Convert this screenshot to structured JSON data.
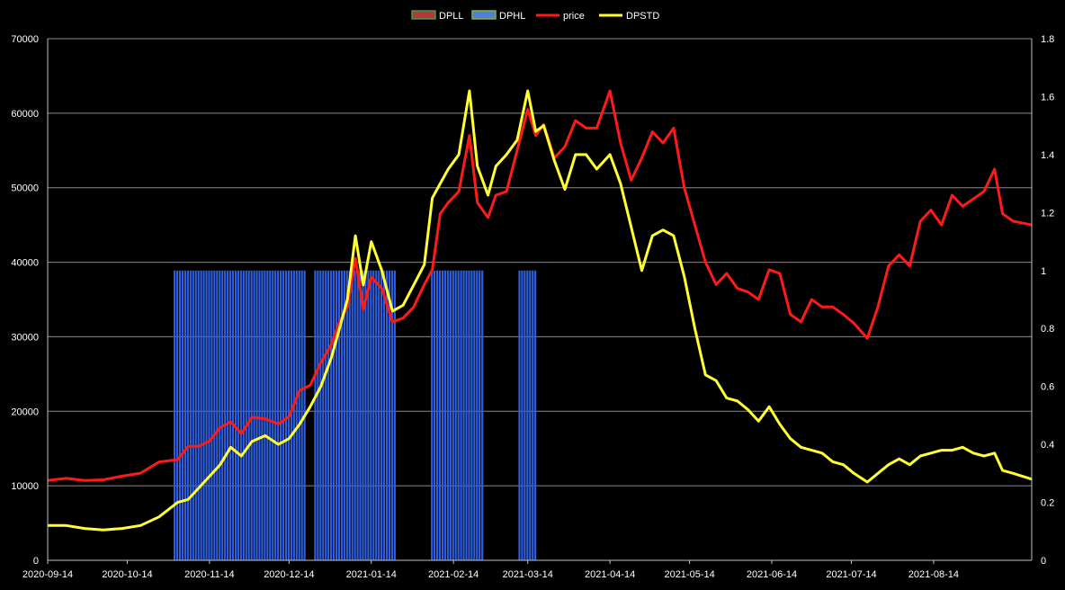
{
  "chart_data": {
    "type": "line",
    "legend": {
      "placement": "top-center",
      "entries": [
        {
          "name": "DPLL",
          "kind": "bar",
          "color": "#b23a3a",
          "border": "#3f9a3f"
        },
        {
          "name": "DPHL",
          "kind": "bar",
          "color": "#4f7fd9",
          "border": "#7fb23f"
        },
        {
          "name": "price",
          "kind": "line",
          "color": "#ff1a1a"
        },
        {
          "name": "DPSTD",
          "kind": "line",
          "color": "#ffff33"
        }
      ]
    },
    "grid": true,
    "x_axis": {
      "type": "date",
      "start": "2020-09-14",
      "end": "2021-09-20",
      "tick_labels": [
        "2020-09-14",
        "2020-10-14",
        "2020-11-14",
        "2020-12-14",
        "2021-01-14",
        "2021-02-14",
        "2021-03-14",
        "2021-04-14",
        "2021-05-14",
        "2021-06-14",
        "2021-07-14",
        "2021-08-14"
      ]
    },
    "y_left": {
      "range": [
        0,
        70000
      ],
      "tick_labels": [
        "0",
        "10000",
        "20000",
        "30000",
        "40000",
        "50000",
        "60000",
        "70000"
      ]
    },
    "y_right": {
      "range": [
        0,
        1.8
      ],
      "tick_labels": [
        "0",
        "0.2",
        "0.4",
        "0.6",
        "0.8",
        "1",
        "1.2",
        "1.4",
        "1.6",
        "1.8"
      ]
    },
    "bars": {
      "name": "DPHL",
      "axis": "right",
      "value": 1,
      "color": "#2f5fe0",
      "ranges": [
        [
          "2020-11-01",
          "2020-12-20"
        ],
        [
          "2020-12-24",
          "2021-01-23"
        ],
        [
          "2021-02-06",
          "2021-02-25"
        ],
        [
          "2021-03-11",
          "2021-03-17"
        ]
      ]
    },
    "series": [
      {
        "name": "price",
        "axis": "left",
        "color": "#ff1a1a",
        "points": [
          [
            "2020-09-14",
            10700
          ],
          [
            "2020-09-21",
            11000
          ],
          [
            "2020-09-28",
            10700
          ],
          [
            "2020-10-05",
            10800
          ],
          [
            "2020-10-12",
            11300
          ],
          [
            "2020-10-19",
            11700
          ],
          [
            "2020-10-26",
            13200
          ],
          [
            "2020-11-02",
            13500
          ],
          [
            "2020-11-06",
            15300
          ],
          [
            "2020-11-10",
            15300
          ],
          [
            "2020-11-14",
            16000
          ],
          [
            "2020-11-18",
            17800
          ],
          [
            "2020-11-22",
            18600
          ],
          [
            "2020-11-26",
            17000
          ],
          [
            "2020-11-30",
            19200
          ],
          [
            "2020-12-05",
            19000
          ],
          [
            "2020-12-10",
            18300
          ],
          [
            "2020-12-14",
            19300
          ],
          [
            "2020-12-18",
            22800
          ],
          [
            "2020-12-22",
            23500
          ],
          [
            "2020-12-26",
            26500
          ],
          [
            "2020-12-30",
            29000
          ],
          [
            "2021-01-02",
            32000
          ],
          [
            "2021-01-05",
            34000
          ],
          [
            "2021-01-08",
            40500
          ],
          [
            "2021-01-11",
            33700
          ],
          [
            "2021-01-14",
            38000
          ],
          [
            "2021-01-18",
            36500
          ],
          [
            "2021-01-22",
            32000
          ],
          [
            "2021-01-26",
            32500
          ],
          [
            "2021-01-30",
            34000
          ],
          [
            "2021-02-03",
            37000
          ],
          [
            "2021-02-06",
            39000
          ],
          [
            "2021-02-09",
            46500
          ],
          [
            "2021-02-12",
            48000
          ],
          [
            "2021-02-16",
            49500
          ],
          [
            "2021-02-20",
            57000
          ],
          [
            "2021-02-23",
            48000
          ],
          [
            "2021-02-27",
            46000
          ],
          [
            "2021-03-02",
            49000
          ],
          [
            "2021-03-06",
            49500
          ],
          [
            "2021-03-10",
            55000
          ],
          [
            "2021-03-14",
            60500
          ],
          [
            "2021-03-17",
            57000
          ],
          [
            "2021-03-20",
            58500
          ],
          [
            "2021-03-24",
            54000
          ],
          [
            "2021-03-28",
            55500
          ],
          [
            "2021-04-01",
            59000
          ],
          [
            "2021-04-05",
            58000
          ],
          [
            "2021-04-09",
            58000
          ],
          [
            "2021-04-14",
            63000
          ],
          [
            "2021-04-18",
            56000
          ],
          [
            "2021-04-22",
            51000
          ],
          [
            "2021-04-26",
            54000
          ],
          [
            "2021-04-30",
            57500
          ],
          [
            "2021-05-04",
            56000
          ],
          [
            "2021-05-08",
            58000
          ],
          [
            "2021-05-12",
            50000
          ],
          [
            "2021-05-16",
            45000
          ],
          [
            "2021-05-20",
            40000
          ],
          [
            "2021-05-24",
            37000
          ],
          [
            "2021-05-28",
            38500
          ],
          [
            "2021-06-01",
            36500
          ],
          [
            "2021-06-05",
            36000
          ],
          [
            "2021-06-09",
            35000
          ],
          [
            "2021-06-13",
            39000
          ],
          [
            "2021-06-17",
            38500
          ],
          [
            "2021-06-21",
            33000
          ],
          [
            "2021-06-25",
            32000
          ],
          [
            "2021-06-29",
            35000
          ],
          [
            "2021-07-03",
            34000
          ],
          [
            "2021-07-07",
            34000
          ],
          [
            "2021-07-11",
            33000
          ],
          [
            "2021-07-15",
            31800
          ],
          [
            "2021-07-20",
            29800
          ],
          [
            "2021-07-24",
            34000
          ],
          [
            "2021-07-28",
            39500
          ],
          [
            "2021-08-01",
            41000
          ],
          [
            "2021-08-05",
            39500
          ],
          [
            "2021-08-09",
            45500
          ],
          [
            "2021-08-13",
            47000
          ],
          [
            "2021-08-17",
            45000
          ],
          [
            "2021-08-21",
            49000
          ],
          [
            "2021-08-25",
            47500
          ],
          [
            "2021-08-29",
            48500
          ],
          [
            "2021-09-02",
            49500
          ],
          [
            "2021-09-06",
            52500
          ],
          [
            "2021-09-09",
            46500
          ],
          [
            "2021-09-13",
            45500
          ],
          [
            "2021-09-20",
            45000
          ]
        ]
      },
      {
        "name": "DPSTD",
        "axis": "right",
        "color": "#ffff33",
        "points": [
          [
            "2020-09-14",
            0.12
          ],
          [
            "2020-09-21",
            0.12
          ],
          [
            "2020-09-28",
            0.11
          ],
          [
            "2020-10-05",
            0.105
          ],
          [
            "2020-10-12",
            0.11
          ],
          [
            "2020-10-19",
            0.12
          ],
          [
            "2020-10-26",
            0.15
          ],
          [
            "2020-11-02",
            0.2
          ],
          [
            "2020-11-06",
            0.21
          ],
          [
            "2020-11-10",
            0.25
          ],
          [
            "2020-11-14",
            0.29
          ],
          [
            "2020-11-18",
            0.33
          ],
          [
            "2020-11-22",
            0.39
          ],
          [
            "2020-11-26",
            0.36
          ],
          [
            "2020-11-30",
            0.41
          ],
          [
            "2020-12-05",
            0.43
          ],
          [
            "2020-12-10",
            0.4
          ],
          [
            "2020-12-14",
            0.42
          ],
          [
            "2020-12-18",
            0.47
          ],
          [
            "2020-12-22",
            0.53
          ],
          [
            "2020-12-26",
            0.6
          ],
          [
            "2020-12-30",
            0.7
          ],
          [
            "2021-01-02",
            0.8
          ],
          [
            "2021-01-05",
            0.9
          ],
          [
            "2021-01-08",
            1.12
          ],
          [
            "2021-01-11",
            0.95
          ],
          [
            "2021-01-14",
            1.1
          ],
          [
            "2021-01-18",
            1.0
          ],
          [
            "2021-01-22",
            0.86
          ],
          [
            "2021-01-26",
            0.88
          ],
          [
            "2021-01-30",
            0.95
          ],
          [
            "2021-02-03",
            1.02
          ],
          [
            "2021-02-06",
            1.25
          ],
          [
            "2021-02-09",
            1.3
          ],
          [
            "2021-02-12",
            1.35
          ],
          [
            "2021-02-16",
            1.4
          ],
          [
            "2021-02-20",
            1.62
          ],
          [
            "2021-02-23",
            1.36
          ],
          [
            "2021-02-27",
            1.26
          ],
          [
            "2021-03-02",
            1.36
          ],
          [
            "2021-03-06",
            1.4
          ],
          [
            "2021-03-10",
            1.45
          ],
          [
            "2021-03-14",
            1.62
          ],
          [
            "2021-03-17",
            1.48
          ],
          [
            "2021-03-20",
            1.5
          ],
          [
            "2021-03-24",
            1.38
          ],
          [
            "2021-03-28",
            1.28
          ],
          [
            "2021-04-01",
            1.4
          ],
          [
            "2021-04-05",
            1.4
          ],
          [
            "2021-04-09",
            1.35
          ],
          [
            "2021-04-14",
            1.4
          ],
          [
            "2021-04-18",
            1.3
          ],
          [
            "2021-04-22",
            1.15
          ],
          [
            "2021-04-26",
            1.0
          ],
          [
            "2021-04-30",
            1.12
          ],
          [
            "2021-05-04",
            1.14
          ],
          [
            "2021-05-08",
            1.12
          ],
          [
            "2021-05-12",
            0.98
          ],
          [
            "2021-05-16",
            0.8
          ],
          [
            "2021-05-20",
            0.64
          ],
          [
            "2021-05-24",
            0.62
          ],
          [
            "2021-05-28",
            0.56
          ],
          [
            "2021-06-01",
            0.55
          ],
          [
            "2021-06-05",
            0.52
          ],
          [
            "2021-06-09",
            0.48
          ],
          [
            "2021-06-13",
            0.53
          ],
          [
            "2021-06-17",
            0.47
          ],
          [
            "2021-06-21",
            0.42
          ],
          [
            "2021-06-25",
            0.39
          ],
          [
            "2021-06-29",
            0.38
          ],
          [
            "2021-07-03",
            0.37
          ],
          [
            "2021-07-07",
            0.34
          ],
          [
            "2021-07-11",
            0.33
          ],
          [
            "2021-07-15",
            0.3
          ],
          [
            "2021-07-20",
            0.27
          ],
          [
            "2021-07-24",
            0.3
          ],
          [
            "2021-07-28",
            0.33
          ],
          [
            "2021-08-01",
            0.35
          ],
          [
            "2021-08-05",
            0.33
          ],
          [
            "2021-08-09",
            0.36
          ],
          [
            "2021-08-13",
            0.37
          ],
          [
            "2021-08-17",
            0.38
          ],
          [
            "2021-08-21",
            0.38
          ],
          [
            "2021-08-25",
            0.39
          ],
          [
            "2021-08-29",
            0.37
          ],
          [
            "2021-09-02",
            0.36
          ],
          [
            "2021-09-06",
            0.37
          ],
          [
            "2021-09-09",
            0.31
          ],
          [
            "2021-09-13",
            0.3
          ],
          [
            "2021-09-20",
            0.28
          ]
        ]
      }
    ]
  }
}
